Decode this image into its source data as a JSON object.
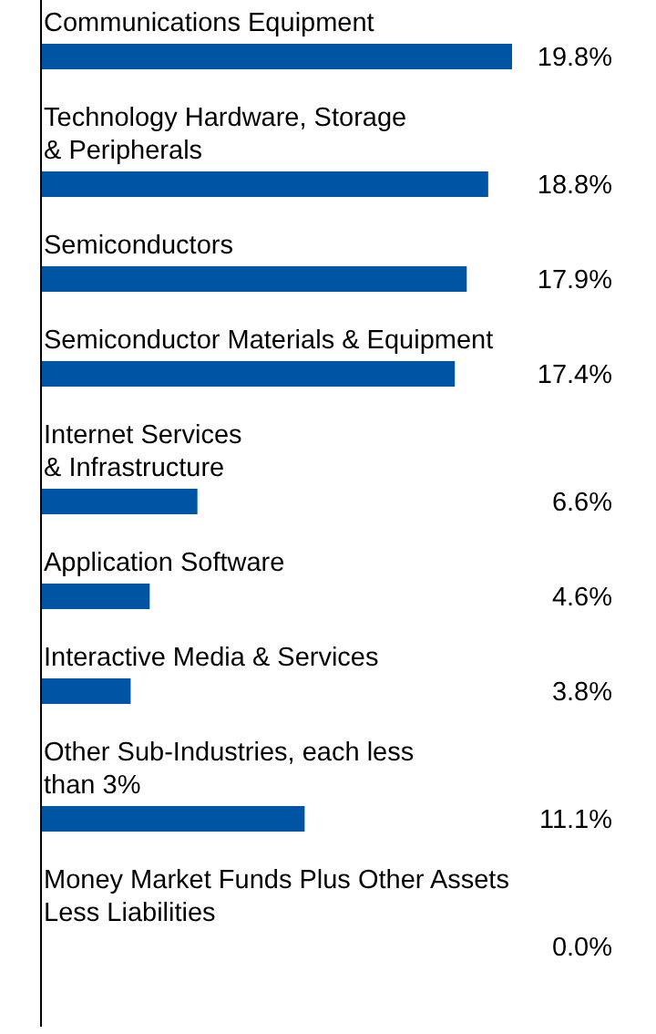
{
  "chart_data": {
    "type": "bar",
    "orientation": "horizontal",
    "color": "#0054a4",
    "value_labels": [
      "19.8%",
      "18.8%",
      "17.9%",
      "17.4%",
      "6.6%",
      "4.6%",
      "3.8%",
      "11.1%",
      "0.0%"
    ],
    "categories": [
      "Communications Equipment",
      "Technology Hardware, Storage\n& Peripherals",
      "Semiconductors",
      "Semiconductor Materials & Equipment",
      "Internet Services\n& Infrastructure",
      "Application Software",
      "Interactive Media & Services",
      "Other Sub-Industries, each less\nthan 3%",
      "Money Market Funds Plus Other Assets\nLess Liabilities"
    ],
    "values": [
      19.8,
      18.8,
      17.9,
      17.4,
      6.6,
      4.6,
      3.8,
      11.1,
      0.0
    ]
  }
}
